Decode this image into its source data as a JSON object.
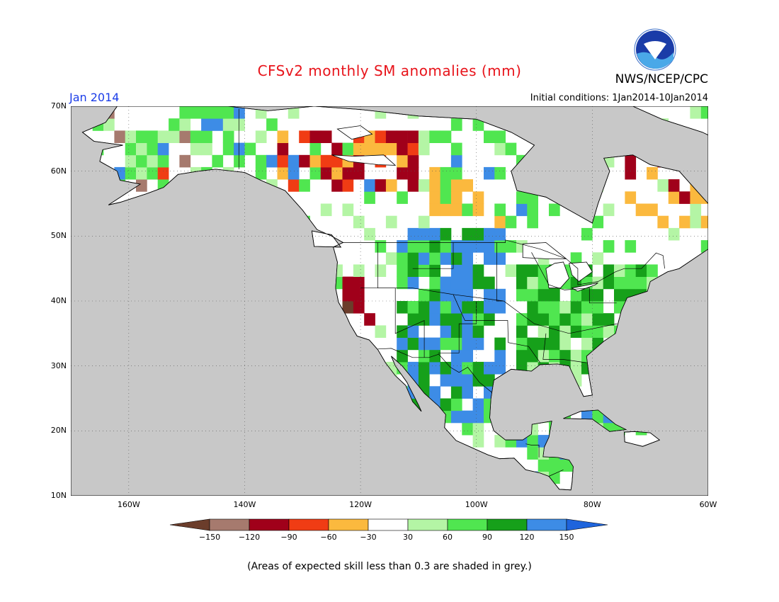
{
  "header": {
    "title": "CFSv2 monthly SM anomalies (mm)",
    "agency": "NWS/NCEP/CPC",
    "month": "Jan 2014",
    "initial_conditions": "Initial conditions: 1Jan2014-10Jan2014"
  },
  "map": {
    "lat_labels": [
      "70N",
      "60N",
      "50N",
      "40N",
      "30N",
      "20N",
      "10N"
    ],
    "lon_labels": [
      "160W",
      "140W",
      "120W",
      "100W",
      "80W",
      "60W"
    ],
    "land_color": "#ffffff",
    "ocean_color": "#c8c8c8"
  },
  "colorbar": {
    "labels": [
      "-150",
      "-120",
      "-90",
      "-60",
      "-30",
      "30",
      "60",
      "90",
      "120",
      "150"
    ],
    "colors": [
      "#6b3d2b",
      "#a67a6e",
      "#a0001a",
      "#f03c14",
      "#fbb93e",
      "#ffffff",
      "#b4f5a5",
      "#50e650",
      "#16a01a",
      "#3d8ce6",
      "#1e64dc"
    ]
  },
  "footnote": "(Areas of expected skill less than 0.3 are shaded in grey.)"
}
